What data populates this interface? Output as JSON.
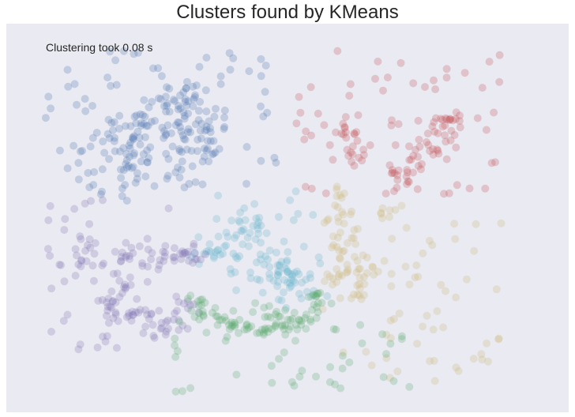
{
  "chart_data": {
    "type": "scatter",
    "title": "Clusters found by KMeans",
    "annotation": "Clustering took 0.08 s",
    "xlabel": "",
    "ylabel": "",
    "grid": false,
    "axes_visible": false,
    "background_color": "#eaeaf2",
    "point_alpha": 0.25,
    "xlim": [
      0,
      1
    ],
    "ylim": [
      0,
      1
    ],
    "clusters": [
      {
        "color": "#4c72b0",
        "core": [
          [
            0.3,
            0.8
          ],
          [
            0.27,
            0.76
          ],
          [
            0.23,
            0.71
          ],
          [
            0.21,
            0.66
          ],
          [
            0.33,
            0.74
          ],
          [
            0.36,
            0.72
          ],
          [
            0.19,
            0.6
          ],
          [
            0.31,
            0.63
          ]
        ],
        "spread": 0.032,
        "count": 150,
        "sparse": {
          "x": [
            0.07,
            0.5
          ],
          "y": [
            0.58,
            0.93
          ],
          "count": 90
        }
      },
      {
        "color": "#c44e52",
        "core": [
          [
            0.71,
            0.62
          ],
          [
            0.74,
            0.68
          ],
          [
            0.78,
            0.73
          ],
          [
            0.8,
            0.76
          ],
          [
            0.6,
            0.72
          ],
          [
            0.61,
            0.66
          ],
          [
            0.7,
            0.6
          ]
        ],
        "spread": 0.016,
        "count": 80,
        "sparse": {
          "x": [
            0.5,
            0.88
          ],
          "y": [
            0.56,
            0.93
          ],
          "count": 60
        }
      },
      {
        "color": "#ccb974",
        "core": [
          [
            0.6,
            0.56
          ],
          [
            0.6,
            0.5
          ],
          [
            0.6,
            0.45
          ],
          [
            0.6,
            0.4
          ],
          [
            0.61,
            0.36
          ],
          [
            0.62,
            0.31
          ],
          [
            0.58,
            0.34
          ],
          [
            0.64,
            0.38
          ],
          [
            0.67,
            0.52
          ]
        ],
        "spread": 0.014,
        "count": 70,
        "sparse": {
          "x": [
            0.56,
            0.88
          ],
          "y": [
            0.08,
            0.5
          ],
          "count": 65
        }
      },
      {
        "color": "#64b5cd",
        "core": [
          [
            0.49,
            0.37
          ],
          [
            0.48,
            0.32
          ],
          [
            0.51,
            0.35
          ],
          [
            0.46,
            0.36
          ],
          [
            0.53,
            0.32
          ],
          [
            0.45,
            0.4
          ],
          [
            0.44,
            0.46
          ],
          [
            0.42,
            0.49
          ],
          [
            0.38,
            0.41
          ],
          [
            0.36,
            0.42
          ]
        ],
        "spread": 0.022,
        "count": 110,
        "sparse": {
          "x": [
            0.36,
            0.56
          ],
          "y": [
            0.36,
            0.6
          ],
          "count": 20
        }
      },
      {
        "color": "#8172b2",
        "core": [
          [
            0.22,
            0.4
          ],
          [
            0.26,
            0.4
          ],
          [
            0.3,
            0.4
          ],
          [
            0.33,
            0.41
          ],
          [
            0.21,
            0.34
          ],
          [
            0.18,
            0.29
          ],
          [
            0.22,
            0.26
          ],
          [
            0.26,
            0.24
          ],
          [
            0.29,
            0.22
          ],
          [
            0.31,
            0.27
          ],
          [
            0.15,
            0.4
          ]
        ],
        "spread": 0.016,
        "count": 120,
        "sparse": {
          "x": [
            0.07,
            0.3
          ],
          "y": [
            0.16,
            0.55
          ],
          "count": 50
        }
      },
      {
        "color": "#55a868",
        "core": [
          [
            0.34,
            0.27
          ],
          [
            0.38,
            0.24
          ],
          [
            0.42,
            0.22
          ],
          [
            0.46,
            0.21
          ],
          [
            0.5,
            0.22
          ],
          [
            0.53,
            0.25
          ],
          [
            0.55,
            0.29
          ],
          [
            0.47,
            0.26
          ]
        ],
        "spread": 0.015,
        "count": 100,
        "sparse": {
          "x": [
            0.28,
            0.72
          ],
          "y": [
            0.05,
            0.24
          ],
          "count": 45
        }
      }
    ]
  }
}
